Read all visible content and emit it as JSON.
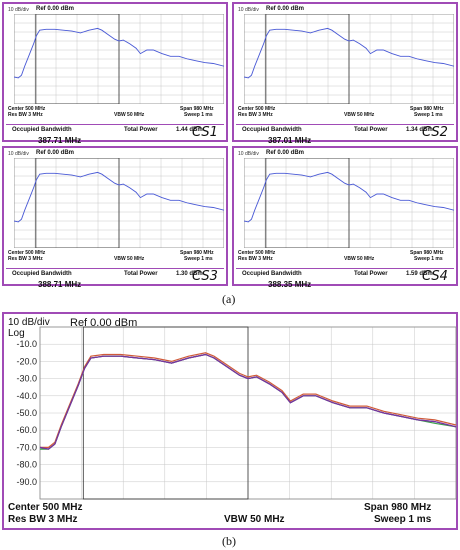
{
  "panels": [
    {
      "id": "CS1",
      "hdr": "10 dB/div",
      "ref": "Ref 0.00 dBm",
      "center": "Center  500 MHz",
      "resbw": "Res BW  3 MHz",
      "vbw": "VBW  50 MHz",
      "span": "Span 980 MHz",
      "sweep": "Sweep  1 ms",
      "ob_label": "Occupied Bandwidth",
      "ob_value": "387.71 MHz",
      "tp_label": "Total Power",
      "tp_value": "1.44 dBm",
      "tag": "CS1"
    },
    {
      "id": "CS2",
      "hdr": "10 dB/div",
      "ref": "Ref 0.00 dBm",
      "center": "Center  500 MHz",
      "resbw": "Res BW  3 MHz",
      "vbw": "VBW  50 MHz",
      "span": "Span 980 MHz",
      "sweep": "Sweep  1 ms",
      "ob_label": "Occupied Bandwidth",
      "ob_value": "387.01 MHz",
      "tp_label": "Total Power",
      "tp_value": "1.34 dBm",
      "tag": "CS2"
    },
    {
      "id": "CS3",
      "hdr": "10 dB/div",
      "ref": "Ref 0.00 dBm",
      "center": "Center  500 MHz",
      "resbw": "Res BW  3 MHz",
      "vbw": "VBW  50 MHz",
      "span": "Span 980 MHz",
      "sweep": "Sweep  1 ms",
      "ob_label": "Occupied Bandwidth",
      "ob_value": "388.71 MHz",
      "tp_label": "Total Power",
      "tp_value": "1.30 dBm",
      "tag": "CS3"
    },
    {
      "id": "CS4",
      "hdr": "10 dB/div",
      "ref": "Ref 0.00 dBm",
      "center": "Center  500 MHz",
      "resbw": "Res BW  3 MHz",
      "vbw": "VBW  50 MHz",
      "span": "Span 980 MHz",
      "sweep": "Sweep  1 ms",
      "ob_label": "Occupied Bandwidth",
      "ob_value": "388.35 MHz",
      "tp_label": "Total Power",
      "tp_value": "1.59 dBm",
      "tag": "CS4"
    }
  ],
  "caption_a": "(a)",
  "caption_b": "(b)",
  "big": {
    "scale": "10 dB/div",
    "log": "Log",
    "ref": "Ref 0.00 dBm",
    "center": "Center  500 MHz",
    "resbw": "Res BW  3 MHz",
    "vbw": "VBW  50 MHz",
    "span": "Span 980 MHz",
    "sweep": "Sweep  1 ms"
  },
  "chart_data": {
    "type": "line",
    "x_unit": "MHz",
    "xlim": [
      10,
      990
    ],
    "ylim": [
      -100,
      0
    ],
    "y_ticks": [
      "-10.0",
      "-20.0",
      "-30.0",
      "-40.0",
      "-50.0",
      "-60.0",
      "-70.0",
      "-80.0",
      "-90.0"
    ],
    "grid": true,
    "obw_markers_mhz": [
      112,
      500
    ],
    "series": [
      {
        "color": "#4a5ad6",
        "x": [
          10,
          30,
          45,
          60,
          80,
          100,
          115,
          130,
          160,
          200,
          240,
          280,
          320,
          360,
          400,
          420,
          450,
          480,
          500,
          520,
          550,
          580,
          600,
          630,
          660,
          700,
          740,
          780,
          820,
          860,
          900,
          940,
          990
        ],
        "y": [
          -70,
          -71,
          -68,
          -58,
          -46,
          -34,
          -24,
          -18,
          -17,
          -17,
          -18,
          -19,
          -21,
          -18,
          -16,
          -18,
          -23,
          -28,
          -30,
          -29,
          -33,
          -38,
          -44,
          -40,
          -40,
          -44,
          -47,
          -47,
          -50,
          -52,
          -54,
          -55,
          -58
        ]
      },
      {
        "color": "#d05a3a",
        "x": [
          10,
          30,
          45,
          60,
          80,
          100,
          115,
          130,
          160,
          200,
          240,
          280,
          320,
          360,
          400,
          420,
          450,
          480,
          500,
          520,
          550,
          580,
          600,
          630,
          660,
          700,
          740,
          780,
          820,
          860,
          900,
          940,
          990
        ],
        "y": [
          -70,
          -70,
          -67,
          -57,
          -45,
          -33,
          -23,
          -17,
          -16,
          -16,
          -17,
          -18,
          -20,
          -17,
          -15,
          -17,
          -22,
          -27,
          -29,
          -28,
          -32,
          -37,
          -43,
          -39,
          -39,
          -43,
          -46,
          -46,
          -49,
          -51,
          -53,
          -54,
          -57
        ]
      },
      {
        "color": "#3aa04a",
        "x": [
          10,
          30,
          45,
          60,
          80,
          100,
          115,
          130,
          160,
          200,
          240,
          280,
          320,
          360,
          400,
          420,
          450,
          480,
          500,
          520,
          550,
          580,
          600,
          630,
          660,
          700,
          740,
          780,
          820,
          860,
          900,
          940,
          990
        ],
        "y": [
          -71,
          -71,
          -68,
          -58,
          -46,
          -34,
          -24,
          -18,
          -17,
          -17,
          -18,
          -19,
          -21,
          -18,
          -16,
          -18,
          -23,
          -28,
          -30,
          -29,
          -33,
          -38,
          -44,
          -40,
          -40,
          -44,
          -47,
          -47,
          -50,
          -52,
          -54,
          -56,
          -58
        ]
      },
      {
        "color": "#7a2fa0",
        "x": [
          10,
          30,
          45,
          60,
          80,
          100,
          115,
          130,
          160,
          200,
          240,
          280,
          320,
          360,
          400,
          420,
          450,
          480,
          500,
          520,
          550,
          580,
          600,
          630,
          660,
          700,
          740,
          780,
          820,
          860,
          900,
          940,
          990
        ],
        "y": [
          -70,
          -71,
          -68,
          -58,
          -46,
          -34,
          -24,
          -18,
          -17,
          -17,
          -18,
          -19,
          -21,
          -18,
          -16,
          -18,
          -23,
          -28,
          -30,
          -29,
          -33,
          -38,
          -44,
          -40,
          -40,
          -44,
          -47,
          -47,
          -50,
          -52,
          -54,
          -55,
          -58
        ]
      }
    ]
  }
}
